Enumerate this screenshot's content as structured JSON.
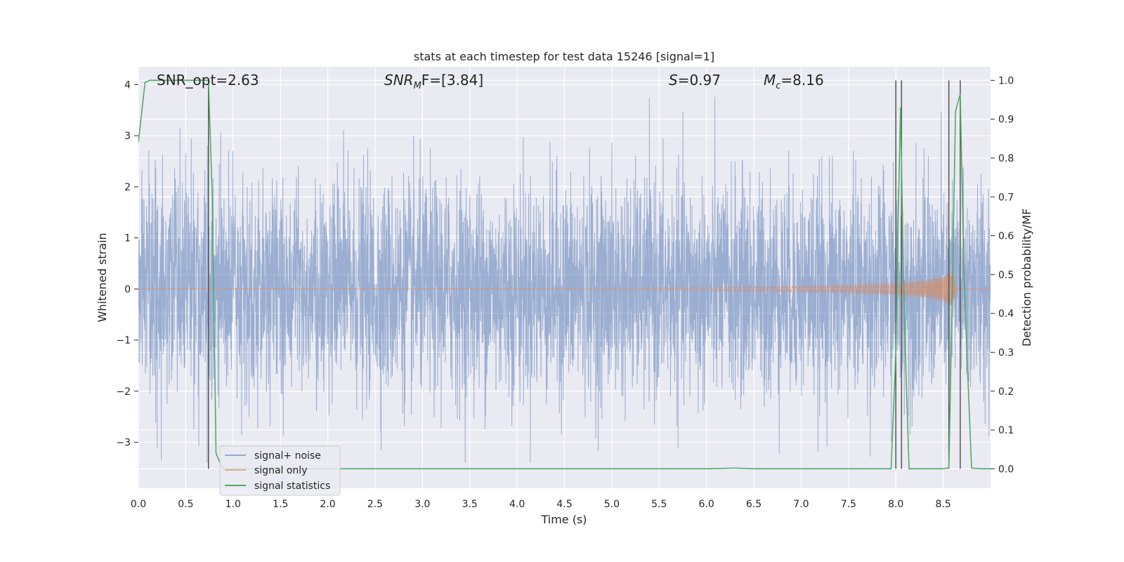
{
  "chart_data": {
    "type": "line",
    "title": "stats at each timestep for test data 15246 [signal=1]",
    "xlabel": "Time (s)",
    "ylabel_left": "Whitened strain",
    "ylabel_right": "Detection probability/MF",
    "xlim": [
      0.0,
      9.0
    ],
    "ylim_left": [
      -3.9,
      4.35
    ],
    "ylim_right": [
      -0.05,
      1.035
    ],
    "x_ticks": [
      "0.0",
      "0.5",
      "1.0",
      "1.5",
      "2.0",
      "2.5",
      "3.0",
      "3.5",
      "4.0",
      "4.5",
      "5.0",
      "5.5",
      "6.0",
      "6.5",
      "7.0",
      "7.5",
      "8.0",
      "8.5"
    ],
    "y_ticks_left": [
      "−3",
      "−2",
      "−1",
      "0",
      "1",
      "2",
      "3",
      "4"
    ],
    "y_ticks_right": [
      "0.0",
      "0.1",
      "0.2",
      "0.3",
      "0.4",
      "0.5",
      "0.6",
      "0.7",
      "0.8",
      "0.9",
      "1.0"
    ],
    "grid": true,
    "legend_position": "lower-left",
    "annotations": {
      "snr_opt": "SNR_opt=2.63",
      "snr_mf_name": "SNR",
      "snr_mf_sub": "M",
      "snr_mf_rest": "F=[3.84]",
      "s_name": "S",
      "s_rest": "=0.97",
      "mc_name": "M",
      "mc_sub": "c",
      "mc_rest": "=8.16"
    },
    "series": [
      {
        "name": "signal+ noise",
        "color": "#4c72b0",
        "description_values": "whitened noise, typical range -2.5 to 2.8, peaks near 3.9 at t≈2.7 and t≈5.8, lows near -3.4 at t≈3.2"
      },
      {
        "name": "signal only",
        "color": "#dd8452",
        "envelope_x": [
          0.0,
          4.5,
          6.0,
          7.0,
          7.5,
          8.0,
          8.3,
          8.5,
          8.6,
          8.65
        ],
        "envelope_y": [
          0.0,
          0.0,
          0.03,
          0.06,
          0.08,
          0.12,
          0.17,
          0.25,
          0.35,
          0.0
        ]
      },
      {
        "name": "signal statistics",
        "color": "#55a868",
        "axis": "right",
        "x": [
          0.0,
          0.07,
          0.12,
          0.2,
          0.3,
          0.4,
          0.5,
          0.6,
          0.7,
          0.74,
          0.78,
          0.82,
          0.87,
          0.9,
          1.5,
          3.0,
          6.0,
          6.3,
          6.5,
          7.0,
          7.5,
          7.8,
          7.95,
          8.0,
          8.02,
          8.05,
          8.08,
          8.1,
          8.14,
          8.2,
          8.3,
          8.5,
          8.56,
          8.6,
          8.63,
          8.68,
          8.72,
          8.75,
          8.8,
          8.9,
          9.0
        ],
        "y": [
          0.84,
          0.995,
          1.0,
          1.0,
          1.0,
          1.0,
          1.0,
          1.0,
          1.0,
          1.0,
          0.7,
          0.04,
          0.01,
          0.0,
          0.0,
          0.0,
          0.0,
          0.002,
          0.0,
          0.0,
          0.0,
          0.0,
          0.0,
          0.3,
          0.6,
          0.93,
          0.5,
          0.3,
          0.0,
          0.0,
          0.0,
          0.0,
          0.003,
          0.5,
          0.92,
          0.965,
          0.5,
          0.3,
          0.002,
          0.0,
          0.0
        ]
      }
    ],
    "vertical_markers_x": [
      0.74,
      8.0,
      8.06,
      8.56,
      8.68
    ]
  }
}
